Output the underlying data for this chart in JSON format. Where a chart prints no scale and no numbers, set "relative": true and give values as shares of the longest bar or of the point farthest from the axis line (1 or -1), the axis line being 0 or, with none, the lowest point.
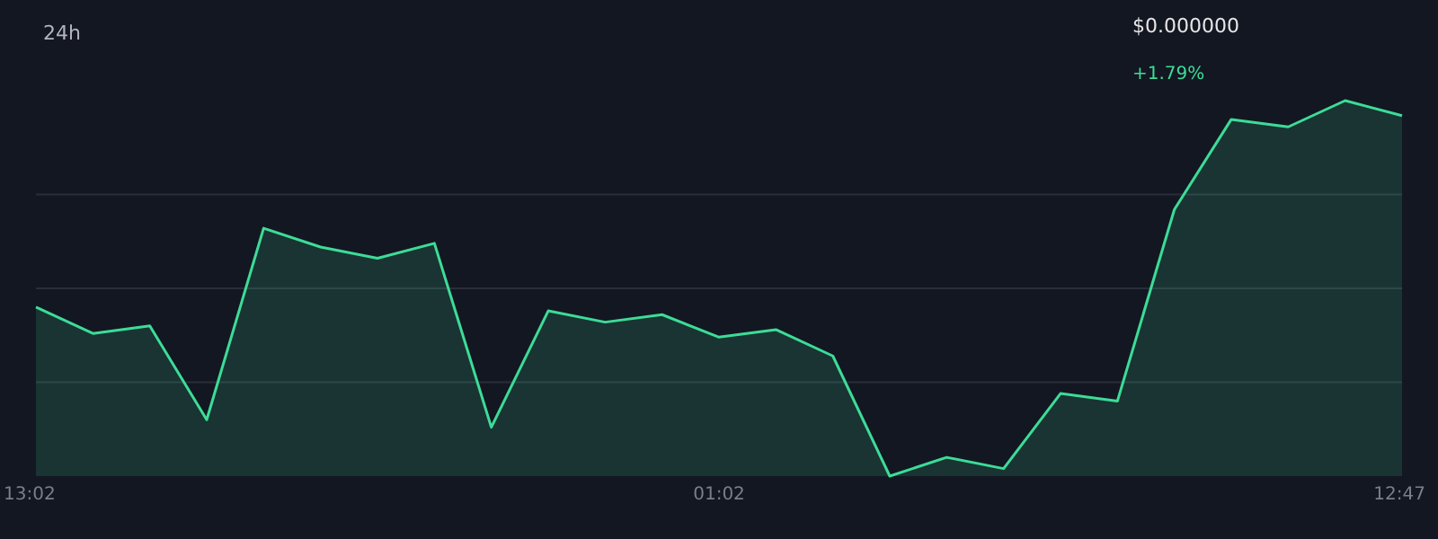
{
  "chart_data": {
    "type": "area",
    "title": "24h",
    "relative": true,
    "grid": "y",
    "color": "#3ddc97",
    "categories": [
      "13:02",
      null,
      null,
      null,
      null,
      null,
      null,
      null,
      null,
      null,
      null,
      null,
      "01:02",
      null,
      null,
      null,
      null,
      null,
      null,
      null,
      null,
      null,
      null,
      null,
      "12:47"
    ],
    "values": [
      0.45,
      0.38,
      0.4,
      0.15,
      0.66,
      0.61,
      0.58,
      0.62,
      0.13,
      0.44,
      0.41,
      0.43,
      0.37,
      0.39,
      0.32,
      0,
      0.05,
      0.02,
      0.22,
      0.2,
      0.71,
      0.95,
      0.93,
      1,
      0.96
    ],
    "annotations": [
      "$0.000000",
      "+1.79%"
    ]
  }
}
